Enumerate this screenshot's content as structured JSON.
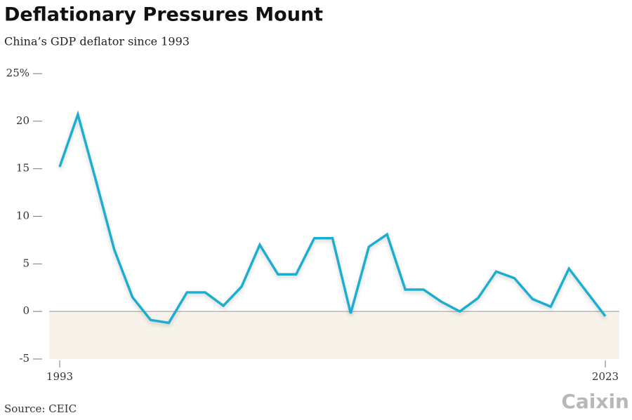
{
  "chart_data": {
    "type": "line",
    "title": "Deflationary Pressures Mount",
    "subtitle": "China’s GDP deflator since 1993",
    "x": [
      1993,
      1994,
      1995,
      1996,
      1997,
      1998,
      1999,
      2000,
      2001,
      2002,
      2003,
      2004,
      2005,
      2006,
      2007,
      2008,
      2009,
      2010,
      2011,
      2012,
      2013,
      2014,
      2015,
      2016,
      2017,
      2018,
      2019,
      2020,
      2021,
      2022,
      2023
    ],
    "values": [
      15.2,
      20.7,
      13.7,
      6.5,
      1.5,
      -0.9,
      -1.2,
      2.0,
      2.0,
      0.6,
      2.6,
      7.0,
      3.9,
      3.9,
      7.7,
      7.7,
      -0.2,
      6.8,
      8.1,
      2.3,
      2.3,
      1.0,
      0.0,
      1.4,
      4.2,
      3.5,
      1.3,
      0.5,
      4.5,
      2.0,
      -0.5
    ],
    "color": "#1eaed0",
    "xlim": [
      1993,
      2023
    ],
    "xticks": [
      1993,
      2023
    ],
    "ylim": [
      -5,
      25
    ],
    "yticks": [
      -5,
      0,
      5,
      10,
      15,
      20,
      {
        "value": 25,
        "label": "25%"
      }
    ]
  },
  "footer": {
    "source": "Source: CEIC",
    "brand": "Caixin"
  }
}
